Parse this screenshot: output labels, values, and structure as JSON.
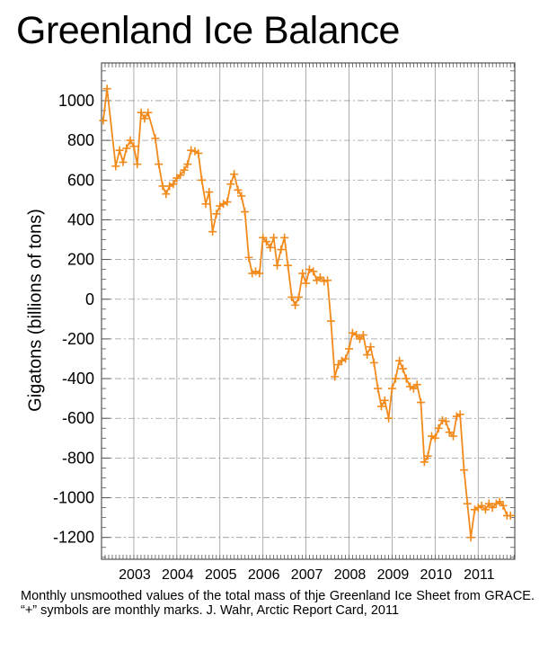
{
  "header": {
    "title": "Greenland Ice Balance"
  },
  "caption": "Monthly unsmoothed values of the total mass of thje Greenland Ice Sheet from GRACE. “+” symbols are monthly marks. J. Wahr, Arctic Report Card, 2011",
  "colors": {
    "series": "#f28a1c",
    "grid": "#999999",
    "axis": "#555555"
  },
  "chart_data": {
    "type": "line",
    "title": "Greenland Ice Balance",
    "xlabel": "",
    "ylabel": "Gigatons (billions of tons)",
    "xlim": [
      2002.25,
      2011.85
    ],
    "ylim": [
      -1310,
      1190
    ],
    "yticks": [
      -1200,
      -1000,
      -800,
      -600,
      -400,
      -200,
      0,
      200,
      400,
      600,
      800,
      1000
    ],
    "ytick_labels": [
      "-1200",
      "-1000",
      "-800",
      "-600",
      "-400",
      "-200",
      "0",
      "200",
      "400",
      "600",
      "800",
      "1000"
    ],
    "xticks": [
      2003,
      2004,
      2005,
      2006,
      2007,
      2008,
      2009,
      2010,
      2011
    ],
    "xtick_labels": [
      "2003",
      "2004",
      "2005",
      "2006",
      "2007",
      "2008",
      "2009",
      "2010",
      "2011"
    ],
    "grid": true,
    "marker": "+",
    "series": [
      {
        "x": [
          2002.29,
          2002.38,
          2002.58,
          2002.67,
          2002.75,
          2002.83,
          2002.92,
          2003.0,
          2003.08,
          2003.17,
          2003.25,
          2003.33,
          2003.5,
          2003.58,
          2003.67,
          2003.75,
          2003.83,
          2003.92,
          2004.0,
          2004.08,
          2004.17,
          2004.25,
          2004.33,
          2004.42,
          2004.5,
          2004.58,
          2004.67,
          2004.75,
          2004.83,
          2004.92,
          2005.0,
          2005.08,
          2005.17,
          2005.25,
          2005.33,
          2005.42,
          2005.5,
          2005.58,
          2005.67,
          2005.75,
          2005.83,
          2005.92,
          2006.0,
          2006.08,
          2006.17,
          2006.25,
          2006.33,
          2006.42,
          2006.5,
          2006.58,
          2006.67,
          2006.75,
          2006.83,
          2006.92,
          2007.0,
          2007.08,
          2007.17,
          2007.25,
          2007.33,
          2007.42,
          2007.5,
          2007.58,
          2007.67,
          2007.75,
          2007.83,
          2007.92,
          2008.0,
          2008.08,
          2008.17,
          2008.25,
          2008.33,
          2008.42,
          2008.5,
          2008.58,
          2008.67,
          2008.75,
          2008.83,
          2008.92,
          2009.0,
          2009.08,
          2009.17,
          2009.25,
          2009.33,
          2009.42,
          2009.5,
          2009.58,
          2009.67,
          2009.75,
          2009.83,
          2009.92,
          2010.0,
          2010.08,
          2010.17,
          2010.25,
          2010.33,
          2010.42,
          2010.5,
          2010.58,
          2010.67,
          2010.75,
          2010.83,
          2010.92,
          2011.0,
          2011.08,
          2011.17,
          2011.25,
          2011.33,
          2011.42,
          2011.5,
          2011.58,
          2011.67,
          2011.75
        ],
        "y": [
          900,
          1060,
          670,
          750,
          690,
          760,
          800,
          770,
          680,
          940,
          910,
          940,
          810,
          680,
          570,
          530,
          570,
          580,
          610,
          625,
          650,
          680,
          750,
          745,
          735,
          600,
          480,
          540,
          340,
          430,
          470,
          480,
          490,
          580,
          630,
          550,
          520,
          440,
          210,
          130,
          140,
          130,
          310,
          290,
          260,
          310,
          170,
          250,
          310,
          170,
          10,
          -30,
          10,
          130,
          80,
          150,
          140,
          95,
          110,
          90,
          95,
          -110,
          -390,
          -330,
          -310,
          -300,
          -250,
          -170,
          -180,
          -200,
          -180,
          -280,
          -240,
          -320,
          -450,
          -540,
          -510,
          -600,
          -450,
          -400,
          -310,
          -350,
          -400,
          -440,
          -450,
          -430,
          -520,
          -820,
          -790,
          -690,
          -700,
          -650,
          -610,
          -615,
          -670,
          -690,
          -590,
          -580,
          -860,
          -1030,
          -1200,
          -1060,
          -1050,
          -1040,
          -1060,
          -1030,
          -1050,
          -1030,
          -1020,
          -1040,
          -1090,
          -1090
        ]
      }
    ]
  }
}
